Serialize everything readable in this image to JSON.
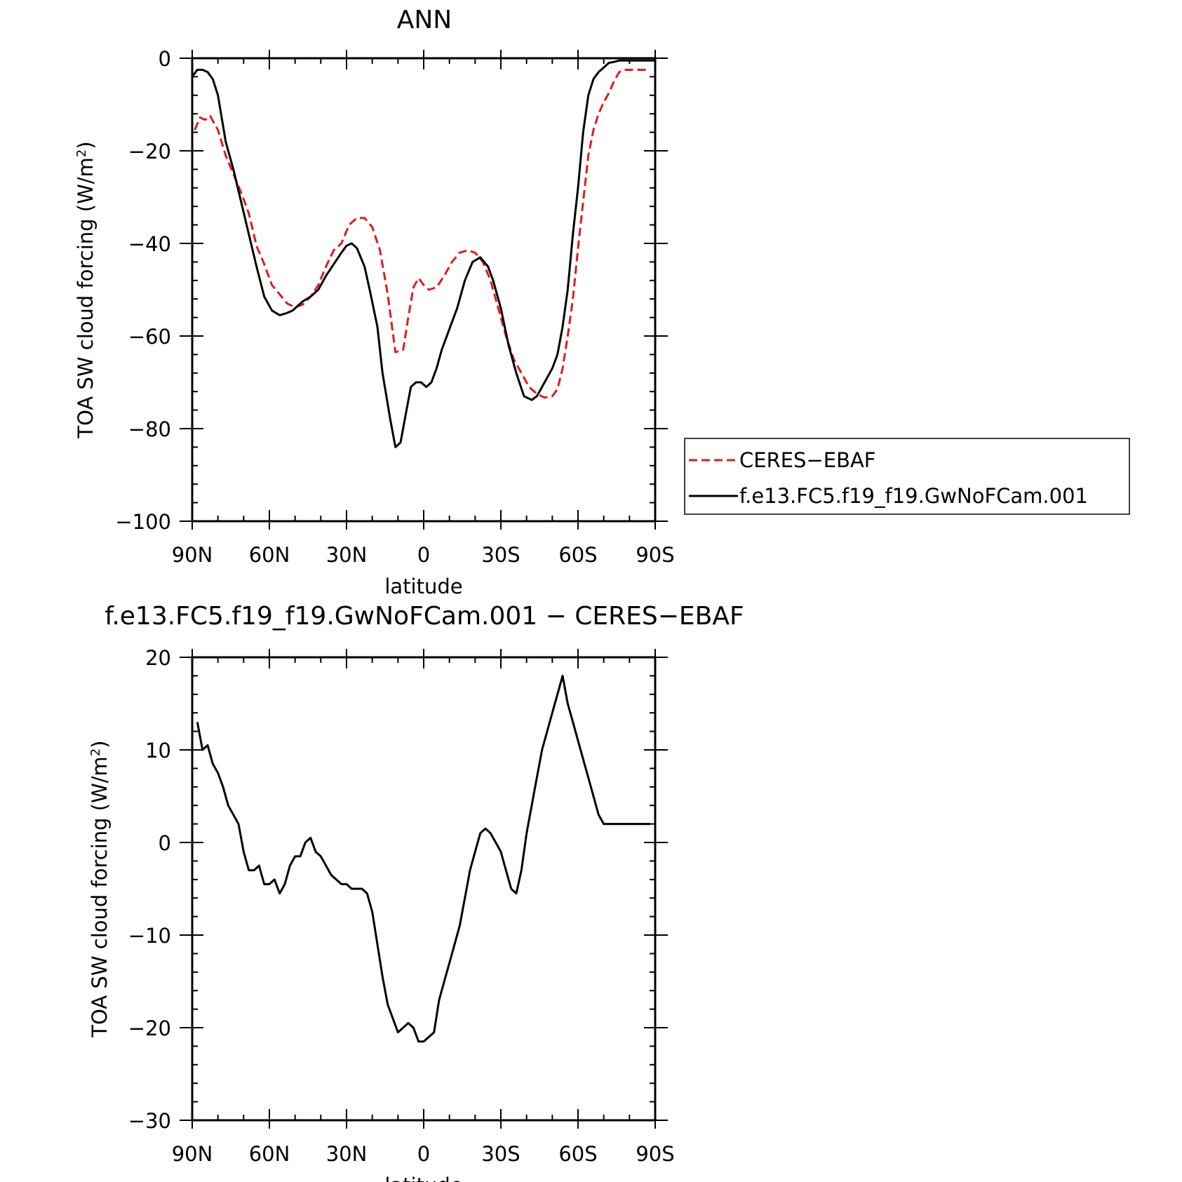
{
  "chart_data": [
    {
      "type": "line",
      "title": "ANN",
      "xlabel": "latitude",
      "ylabel": "TOA SW cloud forcing (W/m²)",
      "ylabel_main": "TOA SW cloud forcing (W/m",
      "ylabel_sup": "2",
      "ylabel_tail": ")",
      "xlim": [
        90,
        -90
      ],
      "ylim": [
        -100,
        0
      ],
      "xticks": [
        90,
        60,
        30,
        0,
        -30,
        -60,
        -90
      ],
      "xtick_labels": [
        "90N",
        "60N",
        "30N",
        "0",
        "30S",
        "60S",
        "90S"
      ],
      "yticks": [
        0,
        -20,
        -40,
        -60,
        -80,
        -100
      ],
      "ytick_labels": [
        "0",
        "−20",
        "−40",
        "−60",
        "−80",
        "−100"
      ],
      "legend": {
        "placement": "right",
        "entries": [
          {
            "label": "CERES−EBAF",
            "color": "#e41a1c",
            "dash": "dashed"
          },
          {
            "label": "f.e13.FC5.f19_f19.GwNoFCam.001",
            "color": "#000000",
            "dash": "solid"
          }
        ]
      },
      "series": [
        {
          "name": "CERES−EBAF",
          "color": "#e41a1c",
          "dash": "dashed",
          "x": [
            89,
            87,
            85,
            83,
            80,
            77,
            74,
            71,
            68,
            65,
            62,
            59,
            56,
            53,
            50,
            47,
            44,
            41,
            38,
            35,
            32,
            29,
            26,
            23,
            20,
            17,
            14,
            11,
            8,
            6,
            4,
            2,
            0,
            -2,
            -5,
            -8,
            -11,
            -14,
            -17,
            -20,
            -23,
            -26,
            -29,
            -32,
            -35,
            -38,
            -41,
            -44,
            -47,
            -50,
            -52,
            -54,
            -56,
            -58,
            -60,
            -62,
            -64,
            -66,
            -68,
            -70,
            -72,
            -74,
            -76,
            -78,
            -80,
            -82,
            -84,
            -86,
            -88
          ],
          "y": [
            -15.5,
            -12.8,
            -13.3,
            -12.5,
            -15.5,
            -21,
            -25,
            -29,
            -33.5,
            -40.5,
            -44.5,
            -49,
            -51,
            -53,
            -53.8,
            -53.2,
            -51.5,
            -49,
            -45,
            -41.5,
            -40,
            -36,
            -34.5,
            -34.5,
            -36.5,
            -41.5,
            -51,
            -63.5,
            -63,
            -56,
            -49.5,
            -47.5,
            -49,
            -50,
            -49.5,
            -47,
            -44,
            -42,
            -41.5,
            -42,
            -44,
            -48,
            -54,
            -60,
            -65,
            -68,
            -71,
            -72.5,
            -73.3,
            -73,
            -71.5,
            -67,
            -60,
            -52,
            -41,
            -31,
            -21,
            -15.5,
            -12,
            -9.5,
            -7.5,
            -5,
            -3,
            -2.5,
            -2.5,
            -2.5,
            -2.5,
            -2.5,
            -2.5
          ]
        },
        {
          "name": "f.e13.FC5.f19_f19.GwNoFCam.001",
          "color": "#000000",
          "dash": "solid",
          "x": [
            90,
            88,
            86,
            84,
            82,
            80,
            77,
            74,
            71,
            68,
            65,
            62,
            59,
            56,
            53,
            51,
            49,
            47,
            44,
            41,
            38,
            35,
            32,
            30,
            28,
            26,
            23,
            21,
            18,
            16,
            13,
            11,
            9,
            7,
            5,
            3,
            1,
            -1,
            -3,
            -5,
            -7,
            -9,
            -11,
            -13,
            -16,
            -19,
            -22,
            -25,
            -27,
            -30,
            -33,
            -36,
            -39,
            -42,
            -44,
            -46,
            -48,
            -50,
            -52,
            -54,
            -56,
            -58,
            -60,
            -62,
            -64,
            -66,
            -68,
            -70,
            -72,
            -74,
            -76,
            -78,
            -80,
            -82,
            -84,
            -86,
            -88,
            -90
          ],
          "y": [
            -4,
            -2.5,
            -2.5,
            -3,
            -4.5,
            -8,
            -18,
            -24,
            -31,
            -38,
            -45,
            -51.5,
            -54.5,
            -55.5,
            -55,
            -54.5,
            -53.5,
            -52.5,
            -51.5,
            -50,
            -47,
            -44.5,
            -42,
            -40.5,
            -40,
            -41,
            -45,
            -50,
            -58,
            -68,
            -78,
            -84,
            -83,
            -77,
            -71,
            -70,
            -70,
            -71,
            -70,
            -67,
            -63,
            -60,
            -57,
            -54,
            -48,
            -44,
            -43,
            -45,
            -48,
            -54,
            -62,
            -68,
            -73,
            -73.8,
            -73,
            -71,
            -69,
            -67,
            -64,
            -58,
            -50,
            -38,
            -28,
            -16,
            -8,
            -4.5,
            -3,
            -2,
            -1,
            -0.8,
            -0.5,
            -0.5,
            -0.5,
            -0.5,
            -0.5,
            -0.5,
            -0.5,
            -0.5
          ]
        }
      ]
    },
    {
      "type": "line",
      "title": "f.e13.FC5.f19_f19.GwNoFCam.001 − CERES−EBAF",
      "xlabel": "latitude",
      "ylabel": "TOA SW cloud forcing (W/m²)",
      "ylabel_main": "TOA SW cloud forcing (W/m",
      "ylabel_sup": "2",
      "ylabel_tail": ")",
      "xlim": [
        90,
        -90
      ],
      "ylim": [
        -30,
        20
      ],
      "xticks": [
        90,
        60,
        30,
        0,
        -30,
        -60,
        -90
      ],
      "xtick_labels": [
        "90N",
        "60N",
        "30N",
        "0",
        "30S",
        "60S",
        "90S"
      ],
      "yticks": [
        20,
        10,
        0,
        -10,
        -20,
        -30
      ],
      "ytick_labels": [
        "20",
        "10",
        "0",
        "−10",
        "−20",
        "−30"
      ],
      "series": [
        {
          "color": "#000000",
          "dash": "solid",
          "x": [
            88,
            86,
            84,
            82,
            80,
            78,
            76,
            74,
            72,
            70,
            68,
            66,
            64,
            62,
            60,
            58,
            56,
            54,
            52,
            50,
            48,
            46,
            44,
            42,
            40,
            38,
            36,
            34,
            32,
            30,
            28,
            26,
            24,
            22,
            20,
            18,
            16,
            14,
            12,
            10,
            8,
            6,
            4,
            2,
            0,
            -2,
            -4,
            -6,
            -8,
            -10,
            -12,
            -14,
            -16,
            -18,
            -20,
            -22,
            -24,
            -26,
            -28,
            -30,
            -32,
            -34,
            -36,
            -38,
            -40,
            -42,
            -44,
            -46,
            -48,
            -50,
            -52,
            -54,
            -56,
            -58,
            -60,
            -62,
            -64,
            -66,
            -68,
            -70,
            -72,
            -74,
            -76,
            -78,
            -80,
            -82,
            -84,
            -86,
            -88
          ],
          "y": [
            13,
            10,
            10.5,
            8.5,
            7.5,
            6,
            4,
            3,
            2,
            -1,
            -3,
            -3,
            -2.5,
            -4.5,
            -4.5,
            -4,
            -5.5,
            -4.5,
            -2.5,
            -1.5,
            -1.5,
            0,
            0.5,
            -1,
            -1.5,
            -2.5,
            -3.5,
            -4,
            -4.5,
            -4.5,
            -5,
            -5,
            -5,
            -5.5,
            -7.5,
            -11,
            -14.5,
            -17.5,
            -19,
            -20.5,
            -20,
            -19.5,
            -20,
            -21.5,
            -21.5,
            -21,
            -20.5,
            -17,
            -15,
            -13,
            -11,
            -9,
            -6,
            -3,
            -1,
            1,
            1.5,
            1,
            0,
            -1,
            -3,
            -5,
            -5.5,
            -3,
            1,
            4,
            7,
            10,
            12,
            14,
            16,
            18,
            15,
            13,
            11,
            9,
            7,
            5,
            3,
            2,
            2,
            2,
            2,
            2,
            2,
            2,
            2,
            2,
            2
          ]
        }
      ]
    }
  ]
}
